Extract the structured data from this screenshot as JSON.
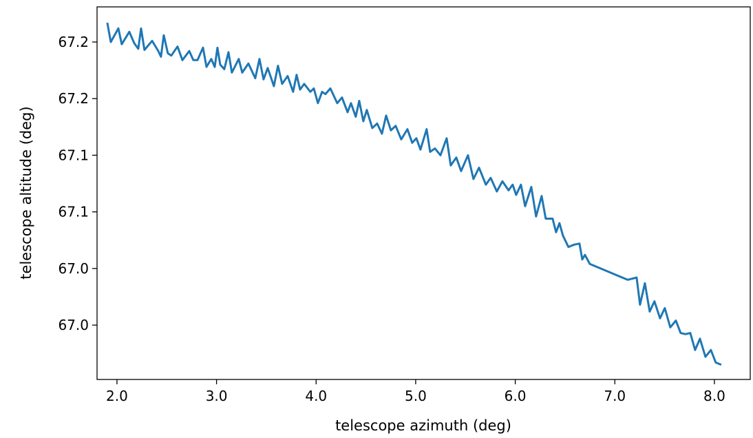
{
  "chart_data": {
    "type": "line",
    "xlabel": "telescope azimuth (deg)",
    "ylabel": "telescope altitude (deg)",
    "x": [
      1.903,
      1.938,
      2.014,
      2.048,
      2.124,
      2.173,
      2.214,
      2.242,
      2.276,
      2.353,
      2.415,
      2.442,
      2.47,
      2.511,
      2.546,
      2.608,
      2.657,
      2.726,
      2.767,
      2.809,
      2.864,
      2.899,
      2.947,
      2.982,
      3.009,
      3.037,
      3.078,
      3.12,
      3.154,
      3.223,
      3.258,
      3.32,
      3.389,
      3.431,
      3.472,
      3.514,
      3.576,
      3.617,
      3.659,
      3.714,
      3.769,
      3.804,
      3.839,
      3.88,
      3.942,
      3.977,
      4.018,
      4.06,
      4.094,
      4.143,
      4.212,
      4.26,
      4.316,
      4.35,
      4.398,
      4.433,
      4.474,
      4.509,
      4.564,
      4.613,
      4.661,
      4.703,
      4.751,
      4.799,
      4.855,
      4.917,
      4.965,
      5.007,
      5.048,
      5.11,
      5.145,
      5.193,
      5.249,
      5.311,
      5.352,
      5.408,
      5.456,
      5.525,
      5.58,
      5.636,
      5.705,
      5.753,
      5.815,
      5.871,
      5.933,
      5.974,
      6.009,
      6.057,
      6.099,
      6.161,
      6.209,
      6.265,
      6.306,
      6.375,
      6.41,
      6.444,
      6.479,
      6.534,
      6.59,
      6.645,
      6.673,
      6.7,
      6.749,
      7.129,
      7.219,
      7.253,
      7.302,
      7.35,
      7.398,
      7.454,
      7.502,
      7.557,
      7.613,
      7.661,
      7.709,
      7.758,
      7.806,
      7.855,
      7.91,
      7.965,
      8.013,
      8.069
    ],
    "series": [
      {
        "color": "#1f77b4",
        "values": [
          67.242,
          67.225,
          67.237,
          67.223,
          67.234,
          67.224,
          67.219,
          67.237,
          67.218,
          67.226,
          67.217,
          67.212,
          67.231,
          67.215,
          67.213,
          67.221,
          67.209,
          67.217,
          67.209,
          67.209,
          67.22,
          67.203,
          67.21,
          67.203,
          67.22,
          67.205,
          67.201,
          67.216,
          67.198,
          67.21,
          67.198,
          67.206,
          67.193,
          67.21,
          67.192,
          67.202,
          67.186,
          67.204,
          67.188,
          67.195,
          67.181,
          67.196,
          67.183,
          67.188,
          67.181,
          67.184,
          67.171,
          67.181,
          67.179,
          67.184,
          67.171,
          67.176,
          67.163,
          67.171,
          67.159,
          67.173,
          67.155,
          67.165,
          67.149,
          67.153,
          67.144,
          67.16,
          67.147,
          67.151,
          67.139,
          67.148,
          67.136,
          67.14,
          67.13,
          67.148,
          67.128,
          67.131,
          67.125,
          67.14,
          67.116,
          67.123,
          67.111,
          67.125,
          67.104,
          67.114,
          67.099,
          67.105,
          67.093,
          67.102,
          67.094,
          67.099,
          67.09,
          67.099,
          67.08,
          67.097,
          67.071,
          67.089,
          67.069,
          67.069,
          67.057,
          67.065,
          67.054,
          67.044,
          67.046,
          67.047,
          67.033,
          67.037,
          67.029,
          67.015,
          67.017,
          66.993,
          67.012,
          66.987,
          66.996,
          66.981,
          66.99,
          66.973,
          66.979,
          66.968,
          66.967,
          66.968,
          66.953,
          66.963,
          66.947,
          66.953,
          66.942,
          66.94
        ]
      }
    ],
    "xlim": [
      1.8,
      8.36
    ],
    "ylim": [
      66.927,
      67.256
    ],
    "xticks": [
      {
        "value": 2,
        "label": "2.0"
      },
      {
        "value": 3,
        "label": "3.0"
      },
      {
        "value": 4,
        "label": "4.0"
      },
      {
        "value": 5,
        "label": "5.0"
      },
      {
        "value": 6,
        "label": "6.0"
      },
      {
        "value": 7,
        "label": "7.0"
      },
      {
        "value": 8,
        "label": "8.0"
      }
    ],
    "yticks": [
      {
        "value": 66.975,
        "label": "67.0"
      },
      {
        "value": 67.025,
        "label": "67.0"
      },
      {
        "value": 67.075,
        "label": "67.1"
      },
      {
        "value": 67.125,
        "label": "67.1"
      },
      {
        "value": 67.175,
        "label": "67.2"
      },
      {
        "value": 67.225,
        "label": "67.2"
      }
    ]
  }
}
